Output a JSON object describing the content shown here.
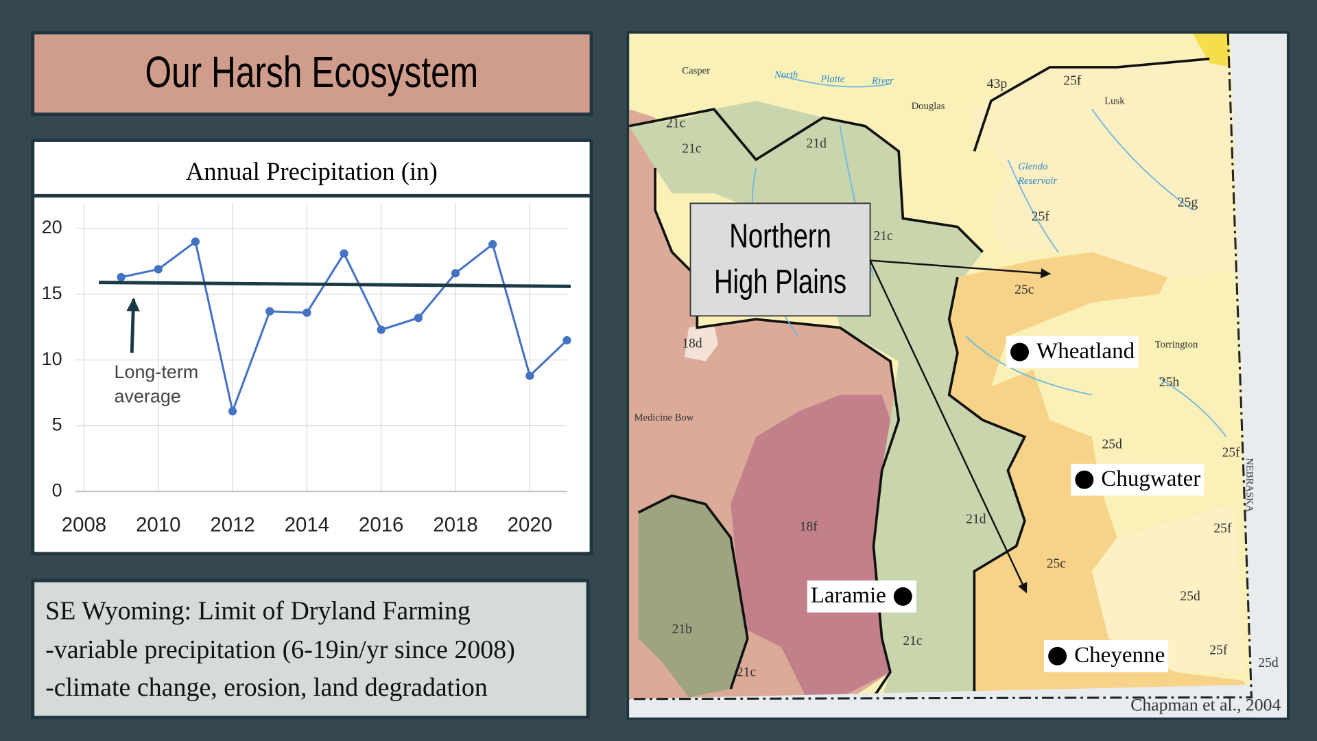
{
  "header": {
    "title": "Our Harsh Ecosystem"
  },
  "chart_data": {
    "type": "line",
    "title": "Annual Precipitation (in)",
    "x": [
      2009,
      2010,
      2011,
      2012,
      2013,
      2014,
      2015,
      2016,
      2017,
      2018,
      2019,
      2020,
      2021
    ],
    "series": [
      {
        "color": "#4472c4",
        "values": [
          16.3,
          16.9,
          19.0,
          6.1,
          13.7,
          13.6,
          18.1,
          12.3,
          13.2,
          16.6,
          18.8,
          8.8,
          11.5
        ]
      }
    ],
    "reference_line": {
      "x": [
        2008.4,
        2021.1
      ],
      "values": [
        15.9,
        15.6
      ],
      "color": "#1b3a44"
    },
    "annotation": [
      "Long-term",
      "average"
    ],
    "xlim": [
      2008,
      2021
    ],
    "xticks": [
      2008,
      2010,
      2012,
      2014,
      2016,
      2018,
      2020
    ],
    "ylim": [
      0,
      22
    ],
    "yticks": [
      0,
      5,
      10,
      15,
      20
    ],
    "grid": true
  },
  "textbox": {
    "heading": "SE Wyoming: Limit of Dryland Farming",
    "lines": [
      "-variable precipitation (6-19in/yr since 2008)",
      "-climate change, erosion, land degradation"
    ]
  },
  "map": {
    "callout": [
      "Northern",
      "High Plains"
    ],
    "cities": [
      "Wheatland",
      "Chugwater",
      "Laramie",
      "Cheyenne"
    ],
    "labels": [
      "Casper",
      "North",
      "Platte",
      "River",
      "Douglas",
      "Lusk",
      "Torrington",
      "Medicine Bow",
      "Glendo",
      "Reservoir",
      "NEBRASKA",
      "21c",
      "21c",
      "21d",
      "21c",
      "18d",
      "18f",
      "21d",
      "21c",
      "21c",
      "21b",
      "43p",
      "25f",
      "25f",
      "25g",
      "25c",
      "25h",
      "25d",
      "25c",
      "25d",
      "25f",
      "25f",
      "25f",
      "25d"
    ],
    "credit": "Chapman et al., 2004"
  }
}
